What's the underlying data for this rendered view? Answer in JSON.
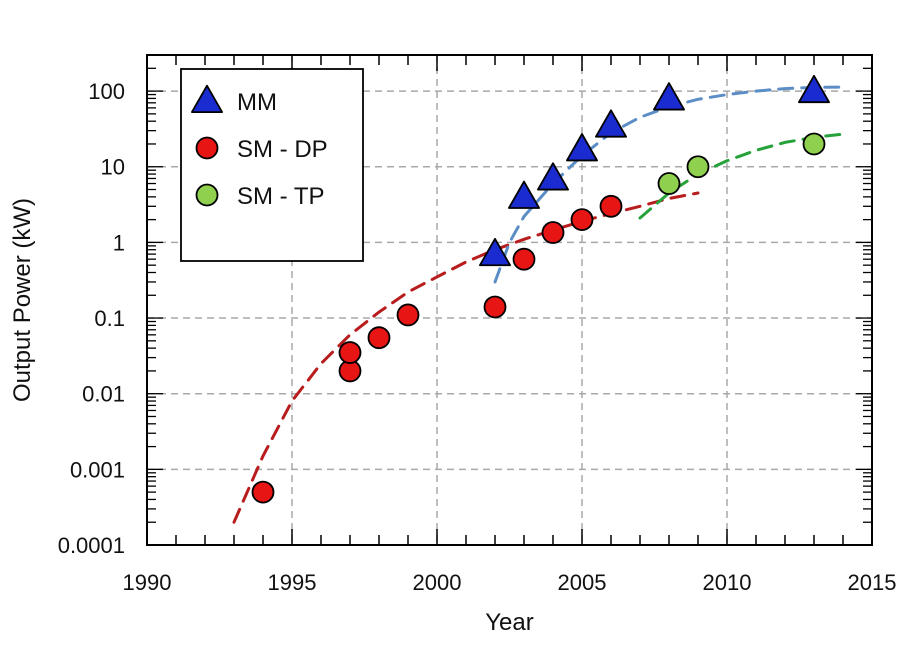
{
  "chart_data": {
    "type": "scatter",
    "xlabel": "Year",
    "ylabel": "Output Power (kW)",
    "xlim": [
      1990,
      2015
    ],
    "ylim": [
      0.0001,
      300
    ],
    "yscale": "log",
    "grid": true,
    "legend_position": "top-left",
    "x_ticks": [
      1990,
      1995,
      2000,
      2005,
      2010,
      2015
    ],
    "x_tick_labels": [
      "1990",
      "1995",
      "2000",
      "2005",
      "2010",
      "2015"
    ],
    "y_ticks": [
      0.0001,
      0.001,
      0.01,
      0.1,
      1,
      10,
      100
    ],
    "y_tick_labels": [
      "0.0001",
      "0.001",
      "0.01",
      "0.1",
      "1",
      "10",
      "100"
    ],
    "series": [
      {
        "name": "MM",
        "marker": "triangle",
        "color": "#1a2bd0",
        "points": [
          [
            2002,
            0.7
          ],
          [
            2003,
            4
          ],
          [
            2004,
            7
          ],
          [
            2005,
            17
          ],
          [
            2006,
            35
          ],
          [
            2008,
            80
          ],
          [
            2013,
            100
          ]
        ]
      },
      {
        "name": "SM - DP",
        "marker": "circle",
        "color": "#e81515",
        "points": [
          [
            1994,
            0.0005
          ],
          [
            1997,
            0.02
          ],
          [
            1997,
            0.035
          ],
          [
            1998,
            0.055
          ],
          [
            1999,
            0.11
          ],
          [
            2002,
            0.14
          ],
          [
            2003,
            0.6
          ],
          [
            2004,
            1.35
          ],
          [
            2005,
            2
          ],
          [
            2006,
            3
          ]
        ]
      },
      {
        "name": "SM - TP",
        "marker": "circle",
        "color": "#8fd14f",
        "points": [
          [
            2008,
            6
          ],
          [
            2009,
            10
          ],
          [
            2013,
            20
          ]
        ]
      }
    ],
    "trend_lines": [
      {
        "series": "SM - DP",
        "color": "#b81c1c",
        "points": [
          [
            1993,
            0.0002
          ],
          [
            1994,
            0.0015
          ],
          [
            1995,
            0.008
          ],
          [
            1996,
            0.025
          ],
          [
            1997,
            0.06
          ],
          [
            1998,
            0.12
          ],
          [
            1999,
            0.22
          ],
          [
            2000,
            0.35
          ],
          [
            2001,
            0.55
          ],
          [
            2002,
            0.8
          ],
          [
            2003,
            1.1
          ],
          [
            2004,
            1.45
          ],
          [
            2005,
            1.9
          ],
          [
            2006,
            2.4
          ],
          [
            2007,
            3.0
          ],
          [
            2008,
            3.8
          ],
          [
            2009,
            4.5
          ]
        ]
      },
      {
        "series": "MM",
        "color": "#5b8ec7",
        "points": [
          [
            2002,
            0.3
          ],
          [
            2002.5,
            1
          ],
          [
            2003,
            2.2
          ],
          [
            2004,
            6
          ],
          [
            2005,
            14
          ],
          [
            2006,
            28
          ],
          [
            2007,
            45
          ],
          [
            2008,
            62
          ],
          [
            2009,
            78
          ],
          [
            2010,
            90
          ],
          [
            2011,
            100
          ],
          [
            2012,
            108
          ],
          [
            2013,
            112
          ],
          [
            2014,
            113
          ]
        ]
      },
      {
        "series": "SM - TP",
        "color": "#26a23a",
        "points": [
          [
            2007,
            2.1
          ],
          [
            2008,
            4.5
          ],
          [
            2009,
            8
          ],
          [
            2010,
            12
          ],
          [
            2011,
            16.5
          ],
          [
            2012,
            21
          ],
          [
            2013,
            24.5
          ],
          [
            2014,
            27
          ]
        ]
      }
    ]
  }
}
